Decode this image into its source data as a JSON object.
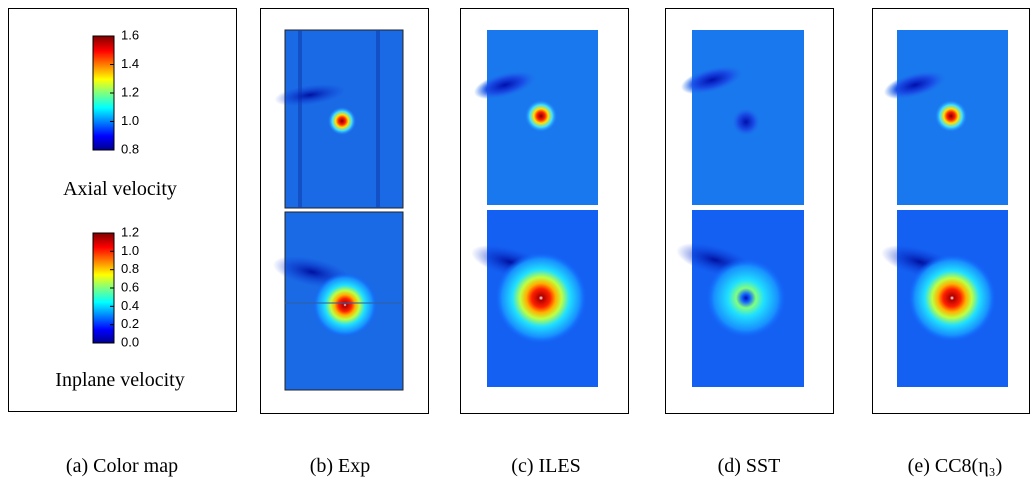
{
  "colormaps": [
    {
      "label": "Axial velocity",
      "range": [
        0.8,
        1.6
      ],
      "ticks": [
        0.8,
        {
          "value": 1,
          "label": "1.0"
        },
        1.2,
        1.4,
        1.6
      ]
    },
    {
      "label": "Inplane velocity",
      "range": [
        0,
        1.2
      ],
      "ticks": [
        {
          "value": 0,
          "label": "0.0"
        },
        0.2,
        0.4,
        0.6,
        0.8,
        {
          "value": 1,
          "label": "1.0"
        },
        1.2
      ]
    }
  ],
  "captions": [
    "(a) Color map",
    "(b) Exp",
    "(c) ILES",
    "(d) SST",
    "(e) CC8(η₃)"
  ]
}
